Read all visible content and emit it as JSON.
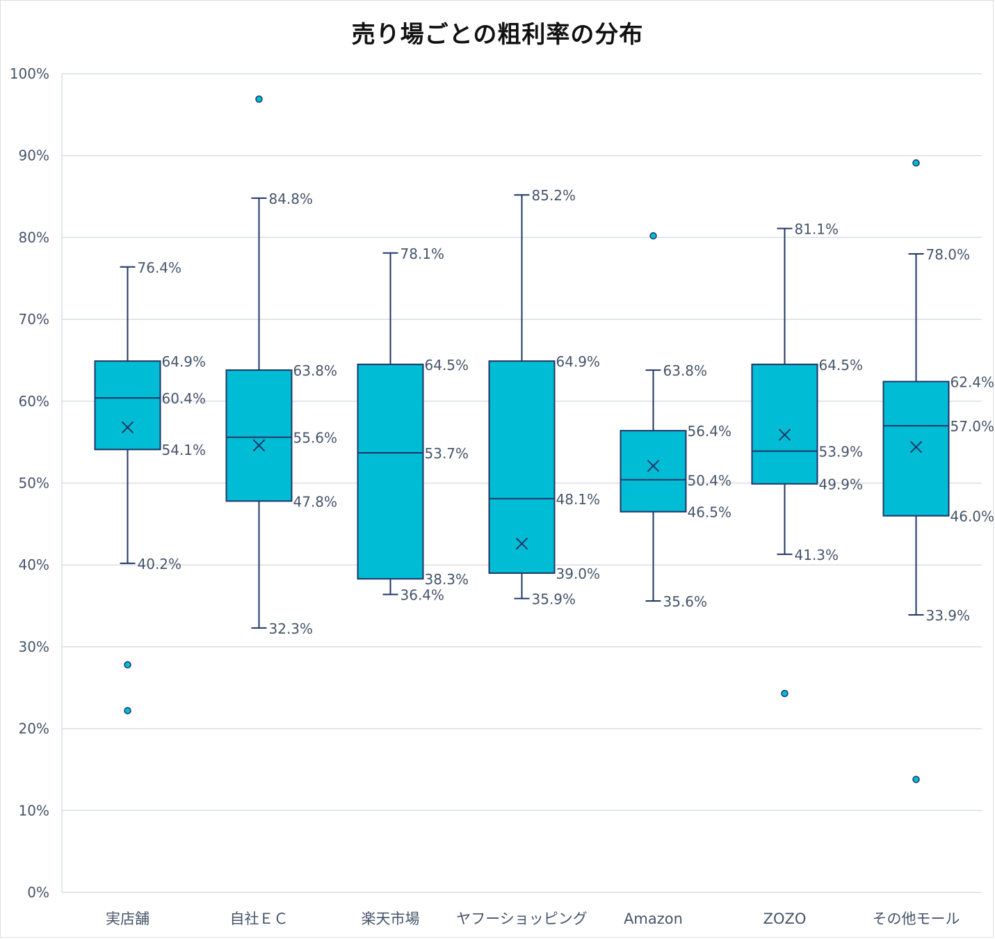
{
  "chart_data": {
    "type": "box",
    "title": "売り場ごとの粗利率の分布",
    "xlabel": "",
    "ylabel": "",
    "ylim": [
      0,
      100
    ],
    "y_ticks": [
      0,
      10,
      20,
      30,
      40,
      50,
      60,
      70,
      80,
      90,
      100
    ],
    "y_tick_labels": [
      "0%",
      "10%",
      "20%",
      "30%",
      "40%",
      "50%",
      "60%",
      "70%",
      "80%",
      "90%",
      "100%"
    ],
    "grid": true,
    "legend": "none",
    "colors": {
      "box_fill": "#00bcd4",
      "box_stroke": "#1f3566",
      "outlier_fill": "#00bcd4",
      "gridline": "#d9dde6",
      "label_text": "#44546a"
    },
    "categories": [
      "実店舗",
      "自社ＥＣ",
      "楽天市場",
      "ヤフーショッピング",
      "Amazon",
      "ZOZO",
      "その他モール"
    ],
    "boxes": [
      {
        "category": "実店舗",
        "min": 40.2,
        "q1": 54.1,
        "median": 60.4,
        "q3": 64.9,
        "max": 76.4,
        "mean": 56.8,
        "outliers": [
          27.8,
          22.2
        ],
        "labels": {
          "min": "40.2%",
          "q1": "54.1%",
          "median": "60.4%",
          "q3": "64.9%",
          "max": "76.4%"
        }
      },
      {
        "category": "自社ＥＣ",
        "min": 32.3,
        "q1": 47.8,
        "median": 55.6,
        "q3": 63.8,
        "max": 84.8,
        "mean": 54.6,
        "outliers": [
          96.9
        ],
        "labels": {
          "min": "32.3%",
          "q1": "47.8%",
          "median": "55.6%",
          "q3": "63.8%",
          "max": "84.8%"
        }
      },
      {
        "category": "楽天市場",
        "min": 36.4,
        "q1": 38.3,
        "median": 53.7,
        "q3": 64.5,
        "max": 78.1,
        "mean": null,
        "outliers": [],
        "labels": {
          "min": "36.4%",
          "q1": "38.3%",
          "median": "53.7%",
          "q3": "64.5%",
          "max": "78.1%"
        }
      },
      {
        "category": "ヤフーショッピング",
        "min": 35.9,
        "q1": 39.0,
        "median": 48.1,
        "q3": 64.9,
        "max": 85.2,
        "mean": 42.6,
        "outliers": [],
        "labels": {
          "min": "35.9%",
          "q1": "39.0%",
          "median": "48.1%",
          "q3": "64.9%",
          "max": "85.2%"
        }
      },
      {
        "category": "Amazon",
        "min": 35.6,
        "q1": 46.5,
        "median": 50.4,
        "q3": 56.4,
        "max": 63.8,
        "mean": 52.1,
        "outliers": [
          80.2
        ],
        "labels": {
          "min": "35.6%",
          "q1": "46.5%",
          "median": "50.4%",
          "q3": "56.4%",
          "max": "63.8%"
        }
      },
      {
        "category": "ZOZO",
        "min": 41.3,
        "q1": 49.9,
        "median": 53.9,
        "q3": 64.5,
        "max": 81.1,
        "mean": 55.9,
        "outliers": [
          24.3
        ],
        "labels": {
          "min": "41.3%",
          "q1": "49.9%",
          "median": "53.9%",
          "q3": "64.5%",
          "max": "81.1%"
        }
      },
      {
        "category": "その他モール",
        "min": 33.9,
        "q1": 46.0,
        "median": 57.0,
        "q3": 62.4,
        "max": 78.0,
        "mean": 54.4,
        "outliers": [
          89.1,
          13.8
        ],
        "labels": {
          "min": "33.9%",
          "q1": "46.0%",
          "median": "57.0%",
          "q3": "62.4%",
          "max": "78.0%"
        }
      }
    ]
  }
}
